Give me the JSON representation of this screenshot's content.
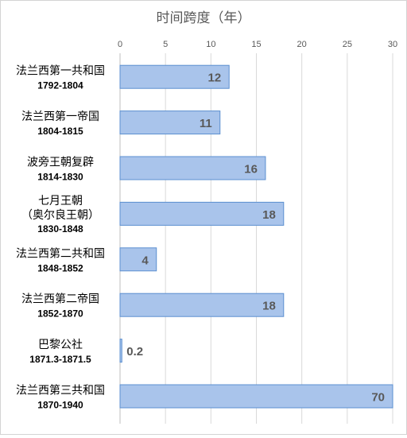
{
  "chart_data": {
    "type": "bar",
    "orientation": "horizontal",
    "title": "时间跨度（年）",
    "xlim": [
      0,
      30
    ],
    "x_ticks": [
      "0",
      "5",
      "10",
      "15",
      "20",
      "25",
      "30"
    ],
    "grid": true,
    "bar_color": "#a9c4eb",
    "bar_edge_color": "#5b8fd0",
    "categories": [
      {
        "name": "法兰西第一共和国",
        "period": "1792-1804",
        "value": 12,
        "label": "12"
      },
      {
        "name": "法兰西第一帝国",
        "period": "1804-1815",
        "value": 11,
        "label": "11"
      },
      {
        "name": "波旁王朝复辟",
        "period": "1814-1830",
        "value": 16,
        "label": "16"
      },
      {
        "name": "七月王朝",
        "name2": "（奥尔良王朝）",
        "period": "1830-1848",
        "value": 18,
        "label": "18"
      },
      {
        "name": "法兰西第二共和国",
        "period": "1848-1852",
        "value": 4,
        "label": "4"
      },
      {
        "name": "法兰西第二帝国",
        "period": "1852-1870",
        "value": 18,
        "label": "18"
      },
      {
        "name": "巴黎公社",
        "period": "1871.3-1871.5",
        "value": 0.2,
        "label": "0.2"
      },
      {
        "name": "法兰西第三共和国",
        "period": "1870-1940",
        "value": 70,
        "label": "70"
      }
    ]
  }
}
